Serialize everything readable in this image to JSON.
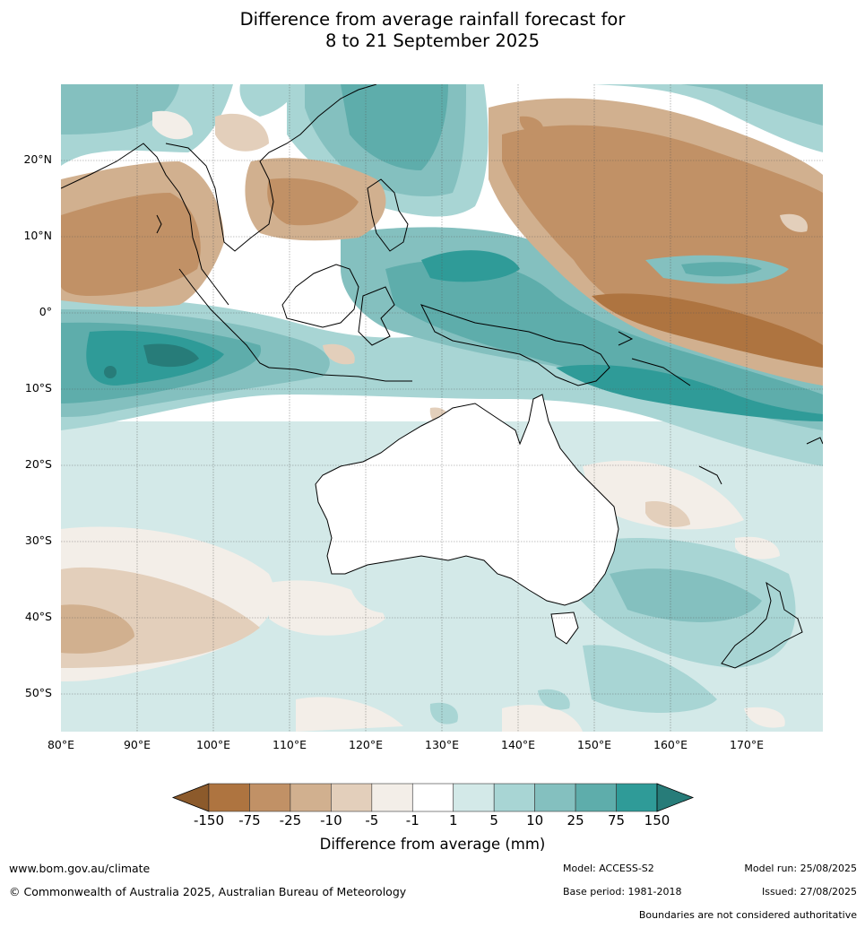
{
  "title_line1": "Difference from average rainfall forecast for",
  "title_line2": "8 to 21 September 2025",
  "map": {
    "lat_labels": [
      "20°N",
      "10°N",
      "0°",
      "10°S",
      "20°S",
      "30°S",
      "40°S",
      "50°S"
    ],
    "lon_labels": [
      "80°E",
      "90°E",
      "100°E",
      "110°E",
      "120°E",
      "130°E",
      "140°E",
      "150°E",
      "160°E",
      "170°E"
    ],
    "lon_range": [
      80,
      180
    ],
    "lat_range": [
      -55,
      30
    ]
  },
  "legend": {
    "label": "Difference from average (mm)",
    "ticks": [
      "-150",
      "-75",
      "-25",
      "-10",
      "-5",
      "-1",
      "1",
      "5",
      "10",
      "25",
      "75",
      "150"
    ],
    "colors": [
      "#8c5a2b",
      "#ae7440",
      "#c19166",
      "#d1b08f",
      "#e3cfbb",
      "#f3eee8",
      "#ffffff",
      "#d3e9e8",
      "#a8d5d4",
      "#84c0bf",
      "#5eadab",
      "#2f9b98",
      "#277c79"
    ]
  },
  "footer": {
    "url": "www.bom.gov.au/climate",
    "copyright": "© Commonwealth of Australia 2025, Australian Bureau of Meteorology",
    "model": "Model: ACCESS-S2",
    "base_period": "Base period: 1981-2018",
    "model_run": "Model run: 25/08/2025",
    "issued": "Issued: 27/08/2025",
    "boundaries": "Boundaries are not considered authoritative"
  }
}
